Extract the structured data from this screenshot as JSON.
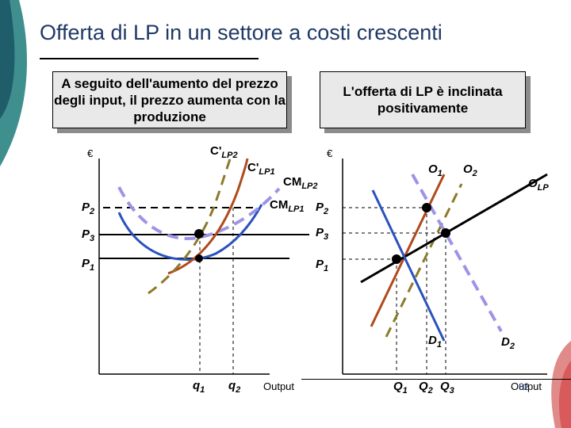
{
  "title": "Offerta di LP in un settore a costi crescenti",
  "box_left": "A seguito dell'aumento del prezzo degli input, il prezzo aumenta con la produzione",
  "box_right": "L'offerta di LP è inclinata positivamente",
  "left_graph": {
    "y_axis": "€",
    "x_axis": "Output",
    "c_lp2": "C'",
    "c_lp2_sub": "LP2",
    "c_lp1": "C'",
    "c_lp1_sub": "LP1",
    "cm_lp2": "CM",
    "cm_lp2_sub": "LP2",
    "cm_lp1": "CM",
    "cm_lp1_sub": "LP1",
    "p2": "P",
    "p2_sub": "2",
    "p3": "P",
    "p3_sub": "3",
    "p1": "P",
    "p1_sub": "1",
    "q1": "q",
    "q1_sub": "1",
    "q2": "q",
    "q2_sub": "2"
  },
  "right_graph": {
    "y_axis": "€",
    "x_axis": "Output",
    "o1": "O",
    "o1_sub": "1",
    "o2": "O",
    "o2_sub": "2",
    "olp": "O",
    "olp_sub": "LP",
    "p2": "P",
    "p2_sub": "2",
    "p3": "P",
    "p3_sub": "3",
    "p1": "P",
    "p1_sub": "1",
    "d1": "D",
    "d1_sub": "1",
    "d2": "D",
    "d2_sub": "2",
    "Q1": "Q",
    "Q1_sub": "1",
    "Q2": "Q",
    "Q2_sub": "2",
    "Q3": "Q",
    "Q3_sub": "3"
  },
  "page_number": "82",
  "colors": {
    "title": "#1f3a66",
    "blue": "#2a52be",
    "lavender": "#9e94e6",
    "brown": "#b04a1c",
    "olive": "#8b7a2a",
    "black": "#000000"
  }
}
